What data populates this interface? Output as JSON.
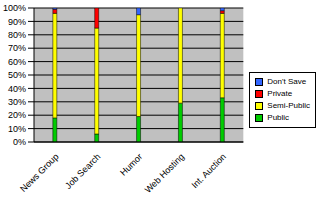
{
  "chart_data": {
    "type": "bar",
    "stacked": true,
    "grid": true,
    "legend": "right",
    "categories": [
      "News Group",
      "Job Search",
      "Humor",
      "Web Hosting",
      "Int. Auction"
    ],
    "series": [
      {
        "name": "Public",
        "color": "#00CC00",
        "values": [
          18,
          6,
          19,
          29,
          33
        ]
      },
      {
        "name": "Semi-Public",
        "color": "#FFFF00",
        "values": [
          78,
          79,
          76,
          71,
          63
        ]
      },
      {
        "name": "Private",
        "color": "#FF0000",
        "values": [
          3,
          15,
          0,
          0,
          2
        ]
      },
      {
        "name": "Don't Save",
        "color": "#3366FF",
        "values": [
          1,
          0,
          5,
          0,
          2
        ]
      }
    ],
    "ylim": [
      0,
      100
    ],
    "yticks": [
      {
        "value": 0,
        "label": "0%"
      },
      {
        "value": 10,
        "label": "10%"
      },
      {
        "value": 20,
        "label": "20%"
      },
      {
        "value": 30,
        "label": "30%"
      },
      {
        "value": 40,
        "label": "40%"
      },
      {
        "value": 50,
        "label": "50%"
      },
      {
        "value": 60,
        "label": "60%"
      },
      {
        "value": 70,
        "label": "70%"
      },
      {
        "value": 80,
        "label": "80%"
      },
      {
        "value": 90,
        "label": "90%"
      },
      {
        "value": 100,
        "label": "100%"
      }
    ]
  }
}
